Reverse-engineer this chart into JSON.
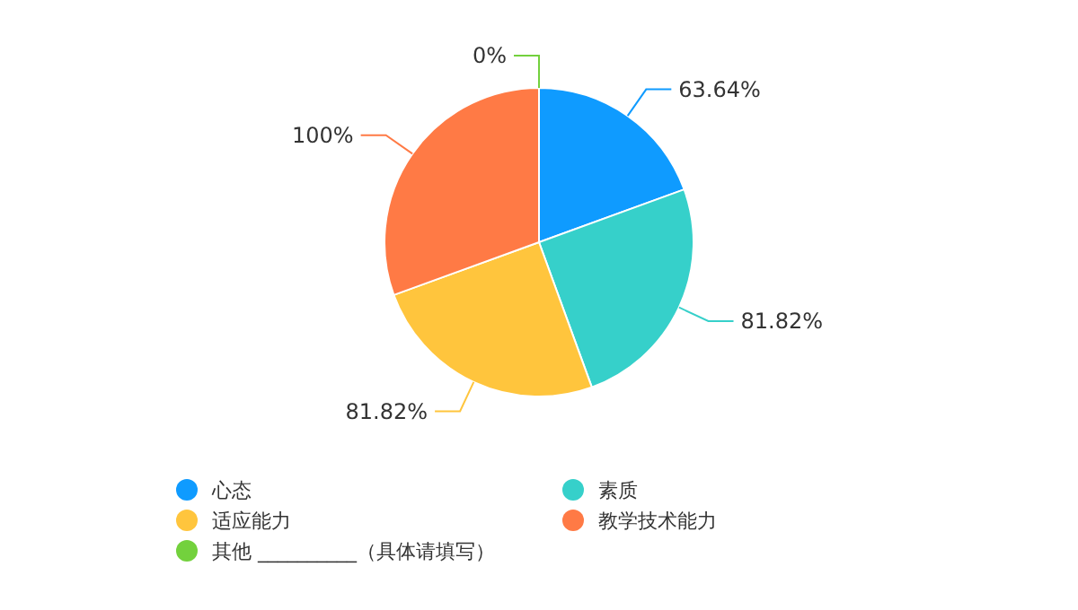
{
  "chart_data": {
    "type": "pie",
    "categories": [
      "心态",
      "素质",
      "适应能力",
      "教学技术能力",
      "其他 __________（具体请填写）"
    ],
    "values": [
      63.64,
      81.82,
      81.82,
      100,
      0
    ],
    "colors": [
      "#0f9bff",
      "#36d0ca",
      "#ffc53d",
      "#ff7a45",
      "#73d13d"
    ],
    "value_labels": [
      "63.64%",
      "81.82%",
      "81.82%",
      "100%",
      "0%"
    ],
    "legend": "bottom"
  }
}
